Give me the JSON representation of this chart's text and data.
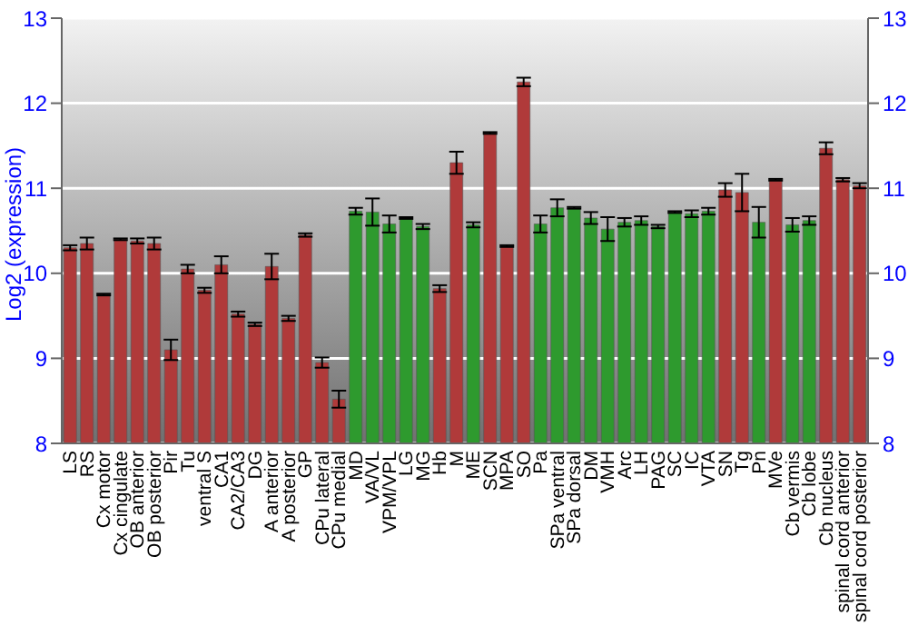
{
  "chart_data": {
    "type": "bar",
    "ylabel": "Log2 (expression)",
    "categories": [
      "LS",
      "RS",
      "Cx motor",
      "Cx cingulate",
      "OB anterior",
      "OB posterior",
      "Pir",
      "Tu",
      "ventral S",
      "CA1",
      "CA2/CA3",
      "DG",
      "A anterior",
      "A posterior",
      "GP",
      "CPu lateral",
      "CPu medial",
      "MD",
      "VA/VL",
      "VPM/VPL",
      "LG",
      "MG",
      "Hb",
      "M",
      "ME",
      "SCN",
      "MPA",
      "SO",
      "Pa",
      "SPa ventral",
      "SPa dorsal",
      "DM",
      "VMH",
      "Arc",
      "LH",
      "PAG",
      "SC",
      "IC",
      "VTA",
      "SN",
      "Tg",
      "Pn",
      "MVe",
      "Cb vermis",
      "Cb lobe",
      "Cb nucleus",
      "spinal cord anterior",
      "spinal cord posterior"
    ],
    "values": [
      10.3,
      10.35,
      9.75,
      10.4,
      10.38,
      10.35,
      9.1,
      10.05,
      9.8,
      10.1,
      9.52,
      9.4,
      10.08,
      9.47,
      10.45,
      8.95,
      8.52,
      10.73,
      10.72,
      10.58,
      10.65,
      10.55,
      9.82,
      11.3,
      10.57,
      11.65,
      10.32,
      12.25,
      10.58,
      10.77,
      10.77,
      10.65,
      10.52,
      10.6,
      10.62,
      10.55,
      10.72,
      10.7,
      10.73,
      10.98,
      10.95,
      10.6,
      11.1,
      10.57,
      10.62,
      11.47,
      11.1,
      11.03
    ],
    "errors": [
      0.03,
      0.07,
      0.01,
      0.01,
      0.03,
      0.07,
      0.12,
      0.05,
      0.03,
      0.1,
      0.03,
      0.02,
      0.15,
      0.03,
      0.02,
      0.06,
      0.1,
      0.04,
      0.16,
      0.1,
      0.01,
      0.03,
      0.04,
      0.13,
      0.03,
      0.01,
      0.01,
      0.05,
      0.1,
      0.1,
      0.01,
      0.07,
      0.14,
      0.05,
      0.05,
      0.02,
      0.01,
      0.04,
      0.04,
      0.08,
      0.22,
      0.18,
      0.01,
      0.08,
      0.05,
      0.07,
      0.02,
      0.03
    ],
    "colors": [
      "#b03a3a",
      "#b03a3a",
      "#b03a3a",
      "#b03a3a",
      "#b03a3a",
      "#b03a3a",
      "#b03a3a",
      "#b03a3a",
      "#b03a3a",
      "#b03a3a",
      "#b03a3a",
      "#b03a3a",
      "#b03a3a",
      "#b03a3a",
      "#b03a3a",
      "#b03a3a",
      "#b03a3a",
      "#2e9a2e",
      "#2e9a2e",
      "#2e9a2e",
      "#2e9a2e",
      "#2e9a2e",
      "#b03a3a",
      "#b03a3a",
      "#2e9a2e",
      "#b03a3a",
      "#b03a3a",
      "#b03a3a",
      "#2e9a2e",
      "#2e9a2e",
      "#2e9a2e",
      "#2e9a2e",
      "#2e9a2e",
      "#2e9a2e",
      "#2e9a2e",
      "#2e9a2e",
      "#2e9a2e",
      "#2e9a2e",
      "#2e9a2e",
      "#b03a3a",
      "#b03a3a",
      "#2e9a2e",
      "#b03a3a",
      "#2e9a2e",
      "#2e9a2e",
      "#b03a3a",
      "#b03a3a",
      "#b03a3a"
    ],
    "ylim": [
      8,
      13
    ],
    "yticks": [
      8,
      9,
      10,
      11,
      12,
      13
    ],
    "y2lim": [
      8,
      13
    ],
    "y2ticks": [
      8,
      9,
      10,
      11,
      12,
      13
    ],
    "grid": "y"
  }
}
